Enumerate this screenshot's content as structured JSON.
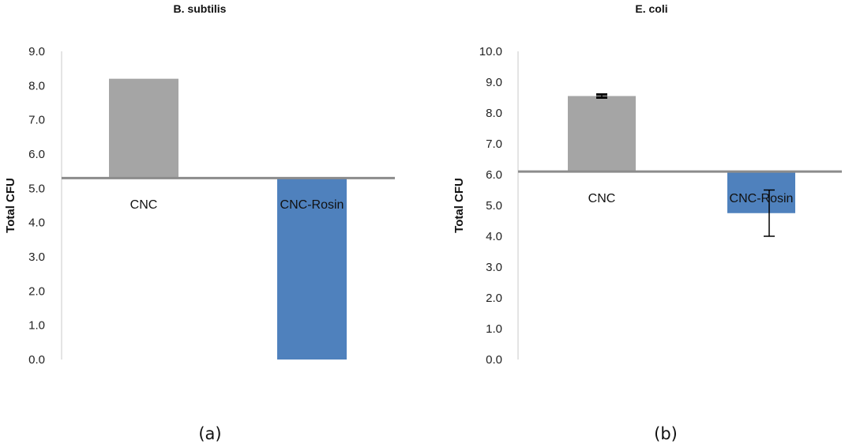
{
  "chart_data": [
    {
      "type": "bar",
      "title": "B. subtilis",
      "ylabel": "Total CFU",
      "xlabel": "",
      "ylim": [
        0,
        9
      ],
      "ytick_step": 1,
      "baseline": 5.3,
      "categories": [
        "CNC",
        "CNC-Rosin"
      ],
      "values": [
        8.2,
        0.0
      ],
      "error": [
        null,
        null
      ],
      "colors": [
        "#a5a5a5",
        "#4f81bd"
      ],
      "grid": false,
      "legend": "none",
      "panel_label": "(a)"
    },
    {
      "type": "bar",
      "title": "E. coli",
      "ylabel": "Total CFU",
      "xlabel": "",
      "ylim": [
        0,
        10
      ],
      "ytick_step": 1,
      "baseline": 6.1,
      "categories": [
        "CNC",
        "CNC-Rosin"
      ],
      "values": [
        8.55,
        4.75
      ],
      "error": [
        0.05,
        0.75
      ],
      "colors": [
        "#a5a5a5",
        "#4f81bd"
      ],
      "grid": false,
      "legend": "none",
      "panel_label": "(b)"
    }
  ]
}
